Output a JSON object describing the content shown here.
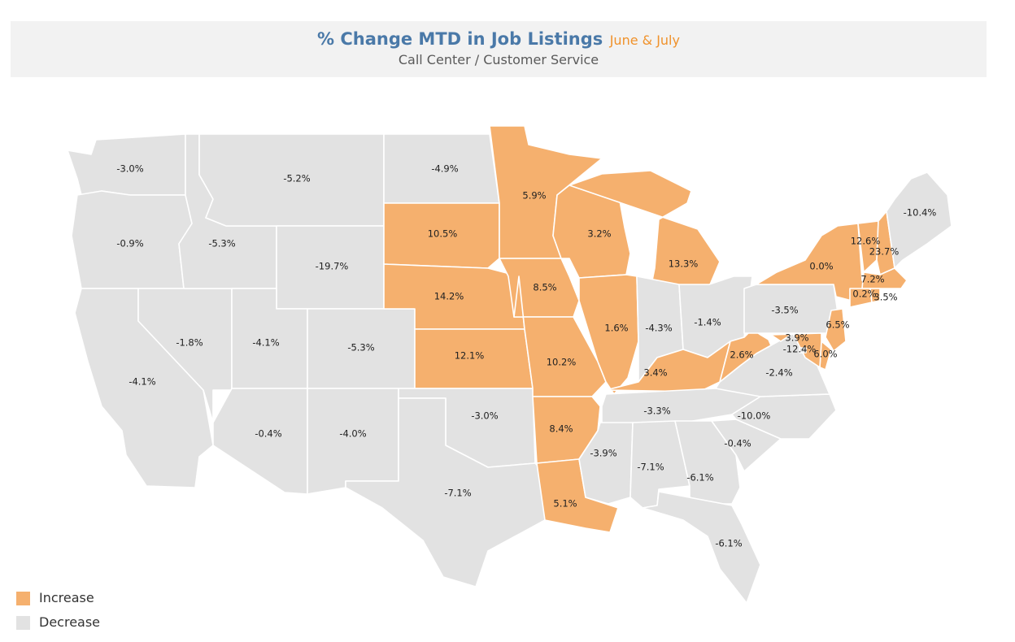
{
  "header": {
    "title": "% Change MTD in Job Listings",
    "title_suffix": "June & July",
    "subtitle": "Call Center / Customer Service"
  },
  "colors": {
    "increase": "#f5b06e",
    "decrease": "#e2e2e2",
    "title": "#4a79a8",
    "title_suffix": "#f0922b",
    "subtitle": "#5a5a5a"
  },
  "legend": [
    {
      "label": "Increase",
      "category": "increase"
    },
    {
      "label": "Decrease",
      "category": "decrease"
    }
  ],
  "chart_data": {
    "type": "choropleth",
    "metric": "% change",
    "states": [
      {
        "state": "WA",
        "value": "-3.0%",
        "category": "decrease"
      },
      {
        "state": "OR",
        "value": "-0.9%",
        "category": "decrease"
      },
      {
        "state": "CA",
        "value": "-4.1%",
        "category": "decrease"
      },
      {
        "state": "NV",
        "value": "-1.8%",
        "category": "decrease"
      },
      {
        "state": "ID",
        "value": "-5.3%",
        "category": "decrease"
      },
      {
        "state": "MT",
        "value": "-5.2%",
        "category": "decrease"
      },
      {
        "state": "WY",
        "value": "-19.7%",
        "category": "decrease"
      },
      {
        "state": "UT",
        "value": "-4.1%",
        "category": "decrease"
      },
      {
        "state": "CO",
        "value": "-5.3%",
        "category": "decrease"
      },
      {
        "state": "AZ",
        "value": "-0.4%",
        "category": "decrease"
      },
      {
        "state": "NM",
        "value": "-4.0%",
        "category": "decrease"
      },
      {
        "state": "ND",
        "value": "-4.9%",
        "category": "decrease"
      },
      {
        "state": "SD",
        "value": "10.5%",
        "category": "increase"
      },
      {
        "state": "NE",
        "value": "14.2%",
        "category": "increase"
      },
      {
        "state": "KS",
        "value": "12.1%",
        "category": "increase"
      },
      {
        "state": "OK",
        "value": "-3.0%",
        "category": "decrease"
      },
      {
        "state": "TX",
        "value": "-7.1%",
        "category": "decrease"
      },
      {
        "state": "MN",
        "value": "5.9%",
        "category": "increase"
      },
      {
        "state": "IA",
        "value": "8.5%",
        "category": "increase"
      },
      {
        "state": "MO",
        "value": "10.2%",
        "category": "increase"
      },
      {
        "state": "AR",
        "value": "8.4%",
        "category": "increase"
      },
      {
        "state": "LA",
        "value": "5.1%",
        "category": "increase"
      },
      {
        "state": "WI",
        "value": "3.2%",
        "category": "increase"
      },
      {
        "state": "IL",
        "value": "1.6%",
        "category": "increase"
      },
      {
        "state": "MI",
        "value": "13.3%",
        "category": "increase"
      },
      {
        "state": "IN",
        "value": "-4.3%",
        "category": "decrease"
      },
      {
        "state": "OH",
        "value": "-1.4%",
        "category": "decrease"
      },
      {
        "state": "KY",
        "value": "3.4%",
        "category": "increase"
      },
      {
        "state": "TN",
        "value": "-3.3%",
        "category": "decrease"
      },
      {
        "state": "MS",
        "value": "-3.9%",
        "category": "decrease"
      },
      {
        "state": "AL",
        "value": "-7.1%",
        "category": "decrease"
      },
      {
        "state": "GA",
        "value": "-6.1%",
        "category": "decrease"
      },
      {
        "state": "FL",
        "value": "-6.1%",
        "category": "decrease"
      },
      {
        "state": "SC",
        "value": "-0.4%",
        "category": "decrease"
      },
      {
        "state": "NC",
        "value": "-10.0%",
        "category": "decrease"
      },
      {
        "state": "VA",
        "value": "-2.4%",
        "category": "decrease"
      },
      {
        "state": "WV",
        "value": "2.6%",
        "category": "increase"
      },
      {
        "state": "PA",
        "value": "-3.5%",
        "category": "decrease"
      },
      {
        "state": "NY",
        "value": "0.0%",
        "category": "increase"
      },
      {
        "state": "VT",
        "value": "12.6%",
        "category": "increase"
      },
      {
        "state": "NH",
        "value": "23.7%",
        "category": "increase"
      },
      {
        "state": "ME",
        "value": "-10.4%",
        "category": "decrease"
      },
      {
        "state": "MA",
        "value": "7.2%",
        "category": "increase"
      },
      {
        "state": "CT",
        "value": "0.2%",
        "category": "increase"
      },
      {
        "state": "RI",
        "value": "3.5%",
        "category": "increase"
      },
      {
        "state": "NJ",
        "value": "6.5%",
        "category": "increase"
      },
      {
        "state": "DE",
        "value": "6.0%",
        "category": "increase"
      },
      {
        "state": "MD",
        "value": "3.9%",
        "category": "increase"
      },
      {
        "state": "DC",
        "value": "-12.4%",
        "category": "decrease"
      }
    ]
  }
}
